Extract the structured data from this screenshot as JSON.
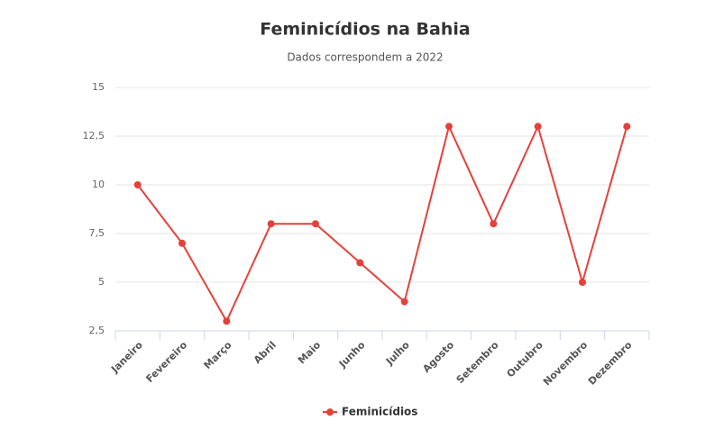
{
  "chart_data": {
    "type": "line",
    "title": "Feminicídios na Bahia",
    "subtitle": "Dados correspondem a 2022",
    "categories": [
      "Janeiro",
      "Fevereiro",
      "Março",
      "Abril",
      "Maio",
      "Junho",
      "Julho",
      "Agosto",
      "Setembro",
      "Outubro",
      "Novembro",
      "Dezembro"
    ],
    "series": [
      {
        "name": "Feminicídios",
        "color": "#e5413a",
        "values": [
          10,
          7,
          3,
          8,
          8,
          6,
          4,
          13,
          8,
          13,
          5,
          13
        ]
      }
    ],
    "ylim": [
      2.5,
      15
    ],
    "yticks": [
      {
        "value": 2.5,
        "label": "2,5"
      },
      5,
      {
        "value": 7.5,
        "label": "7,5"
      },
      10,
      {
        "value": 12.5,
        "label": "12,5"
      },
      15
    ],
    "grid": true,
    "legend": "bottom"
  }
}
